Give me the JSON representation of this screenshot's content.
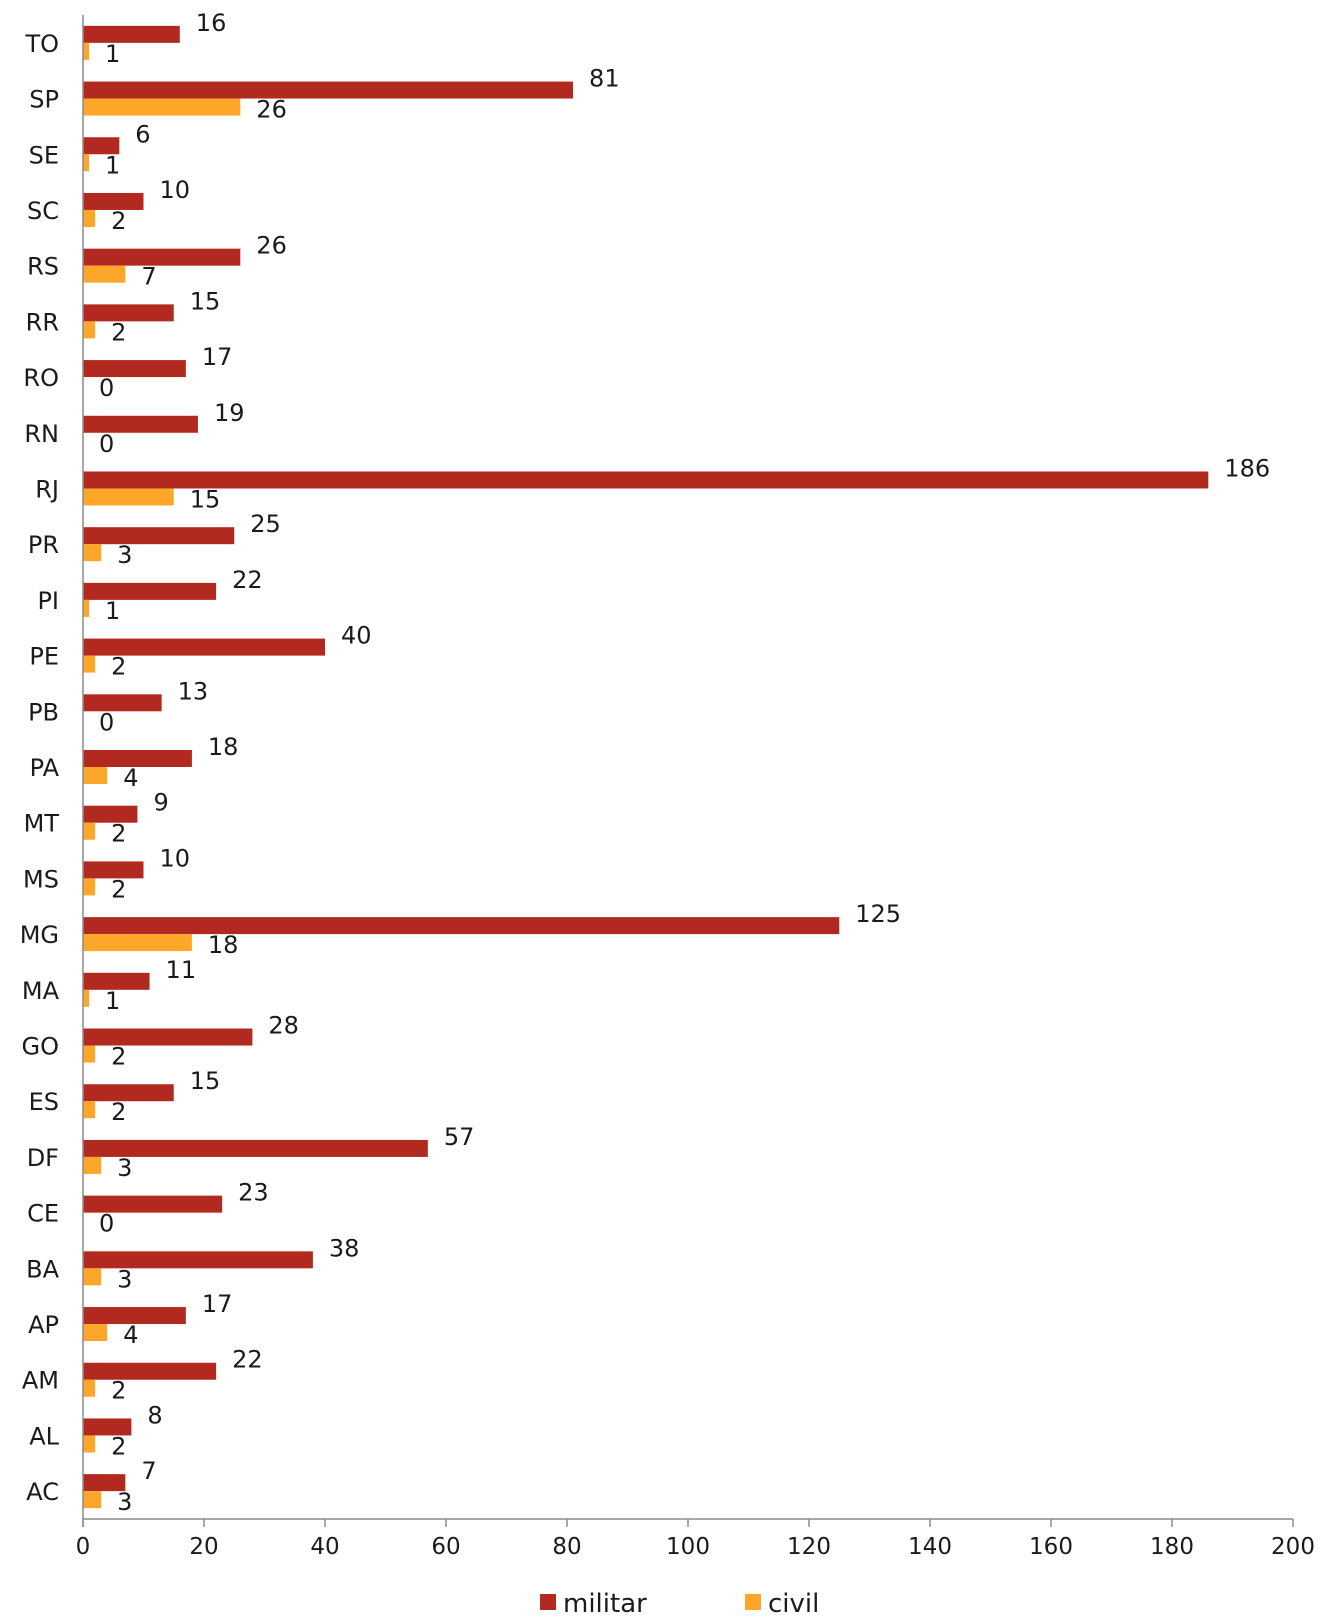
{
  "chart_data": {
    "type": "bar",
    "orientation": "horizontal",
    "categories": [
      "TO",
      "SP",
      "SE",
      "SC",
      "RS",
      "RR",
      "RO",
      "RN",
      "RJ",
      "PR",
      "PI",
      "PE",
      "PB",
      "PA",
      "MT",
      "MS",
      "MG",
      "MA",
      "GO",
      "ES",
      "DF",
      "CE",
      "BA",
      "AP",
      "AM",
      "AL",
      "AC"
    ],
    "series": [
      {
        "name": "militar",
        "color": "#b22a1f",
        "values": [
          16,
          81,
          6,
          10,
          26,
          15,
          17,
          19,
          186,
          25,
          22,
          40,
          13,
          18,
          9,
          10,
          125,
          11,
          28,
          15,
          57,
          23,
          38,
          17,
          22,
          8,
          7
        ]
      },
      {
        "name": "civil",
        "color": "#fca72a",
        "values": [
          1,
          26,
          1,
          2,
          7,
          2,
          0,
          0,
          15,
          3,
          1,
          2,
          0,
          4,
          2,
          2,
          18,
          1,
          2,
          2,
          3,
          0,
          3,
          4,
          2,
          2,
          3
        ]
      }
    ],
    "xlim": [
      0,
      200
    ],
    "xticks": [
      "0",
      "20",
      "40",
      "60",
      "80",
      "100",
      "120",
      "140",
      "160",
      "180",
      "200"
    ],
    "grid": false,
    "legend_position": "bottom"
  }
}
